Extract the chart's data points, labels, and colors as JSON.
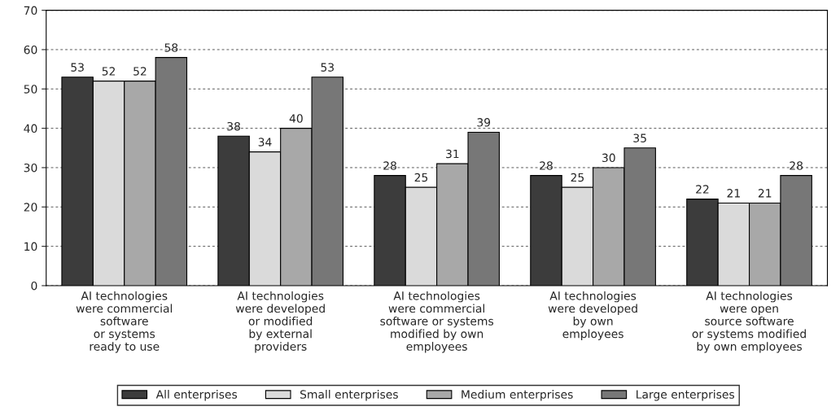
{
  "chart_data": {
    "type": "bar",
    "categories": [
      "AI technologies\nwere commercial\nsoftware\nor systems\nready to use",
      "AI technologies\nwere developed\nor modified\nby external\nproviders",
      "AI technologies\nwere commercial\nsoftware or systems\nmodified by own\nemployees",
      "AI technologies\nwere developed\nby own\nemployees",
      "AI technologies\nwere open\nsource software\nor systems modified\nby own employees"
    ],
    "series": [
      {
        "name": "All enterprises",
        "color": "#3c3c3c",
        "values": [
          53,
          38,
          28,
          28,
          22
        ]
      },
      {
        "name": "Small enterprises",
        "color": "#dadada",
        "values": [
          52,
          34,
          25,
          25,
          21
        ]
      },
      {
        "name": "Medium enterprises",
        "color": "#a8a8a8",
        "values": [
          52,
          40,
          31,
          30,
          21
        ]
      },
      {
        "name": "Large enterprises",
        "color": "#777777",
        "values": [
          58,
          53,
          39,
          35,
          28
        ]
      }
    ],
    "ylim": [
      0,
      70
    ],
    "yticks": [
      0,
      10,
      20,
      30,
      40,
      50,
      60,
      70
    ],
    "grid": "y",
    "legend": "bottom",
    "data_labels": true
  }
}
